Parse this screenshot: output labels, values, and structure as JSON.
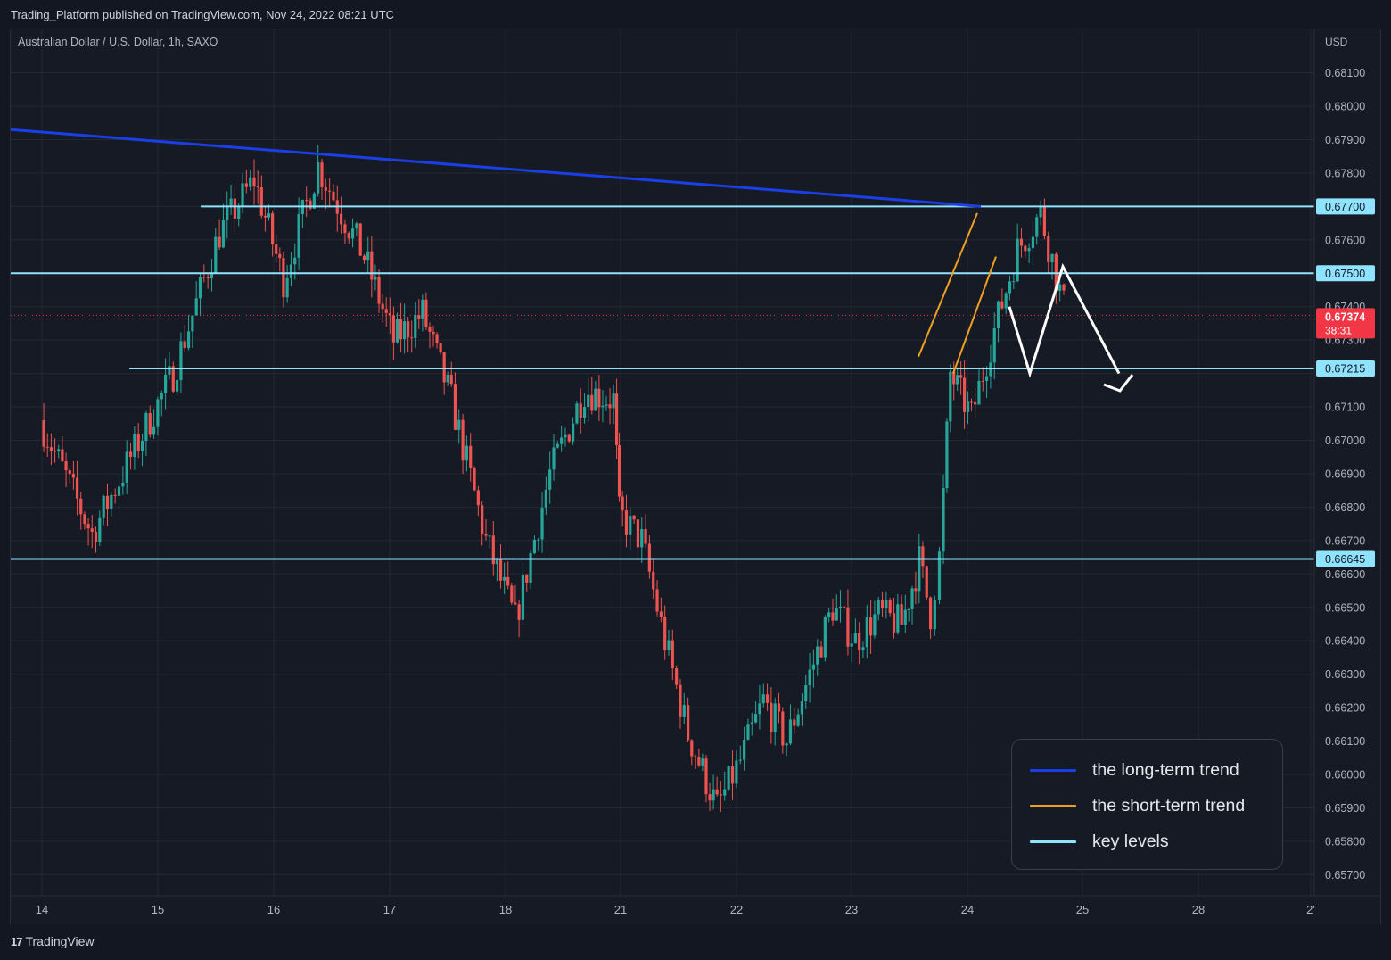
{
  "header": {
    "published_text": "Trading_Platform published on TradingView.com, Nov 24, 2022 08:21 UTC",
    "symbol_text": "Australian Dollar / U.S. Dollar, 1h, SAXO"
  },
  "footer": {
    "brand_mark": "17",
    "brand_name": "TradingView"
  },
  "legend": {
    "items": [
      {
        "label": "the long-term trend",
        "color": "#1b3fe6"
      },
      {
        "label": "the short-term trend",
        "color": "#f0a020"
      },
      {
        "label": "key levels",
        "color": "#8fe3ff"
      }
    ]
  },
  "colors": {
    "background": "#161a25",
    "grid": "#242834",
    "up_candle": "#26a69a",
    "down_candle": "#ef5350",
    "long_trend": "#1b3fe6",
    "short_trend": "#f0a020",
    "key_level": "#8fe3ff",
    "projection": "#ffffff",
    "price_badge": "#f23645"
  },
  "chart_data": {
    "type": "candlestick",
    "title": "Australian Dollar / U.S. Dollar, 1h, SAXO",
    "currency_label": "USD",
    "y_ticks": [
      "0.68100",
      "0.68000",
      "0.67900",
      "0.67800",
      "0.67700",
      "0.67600",
      "0.67500",
      "0.67400",
      "0.67300",
      "0.67200",
      "0.67100",
      "0.67000",
      "0.66900",
      "0.66800",
      "0.66700",
      "0.66600",
      "0.66500",
      "0.66400",
      "0.66300",
      "0.66200",
      "0.66100",
      "0.66000",
      "0.65900",
      "0.65800",
      "0.65700"
    ],
    "ylim": [
      0.6563,
      0.6818
    ],
    "x_labels": [
      "14",
      "15",
      "16",
      "17",
      "18",
      "21",
      "22",
      "23",
      "24",
      "25",
      "28",
      "2'"
    ],
    "session_anchors": [
      {
        "date": "14",
        "close": 0.6706
      },
      {
        "date": "14",
        "close": 0.6672
      },
      {
        "date": "15",
        "close": 0.672
      },
      {
        "date": "15",
        "close": 0.6762
      },
      {
        "date": "15",
        "close": 0.6778
      },
      {
        "date": "16",
        "close": 0.6748
      },
      {
        "date": "16",
        "close": 0.6782
      },
      {
        "date": "16",
        "close": 0.6755
      },
      {
        "date": "17",
        "close": 0.673
      },
      {
        "date": "17",
        "close": 0.6738
      },
      {
        "date": "17",
        "close": 0.6712
      },
      {
        "date": "17",
        "close": 0.667
      },
      {
        "date": "18",
        "close": 0.6646
      },
      {
        "date": "18",
        "close": 0.669
      },
      {
        "date": "18",
        "close": 0.6715
      },
      {
        "date": "18",
        "close": 0.6712
      },
      {
        "date": "21",
        "close": 0.6678
      },
      {
        "date": "21",
        "close": 0.667
      },
      {
        "date": "21",
        "close": 0.664
      },
      {
        "date": "21",
        "close": 0.6612
      },
      {
        "date": "21",
        "close": 0.659
      },
      {
        "date": "22",
        "close": 0.6604
      },
      {
        "date": "22",
        "close": 0.6622
      },
      {
        "date": "22",
        "close": 0.661
      },
      {
        "date": "22",
        "close": 0.665
      },
      {
        "date": "23",
        "close": 0.664
      },
      {
        "date": "23",
        "close": 0.6648
      },
      {
        "date": "23",
        "close": 0.6645
      },
      {
        "date": "23",
        "close": 0.6664
      },
      {
        "date": "23",
        "close": 0.6648
      },
      {
        "date": "23",
        "close": 0.6665
      },
      {
        "date": "23",
        "close": 0.672
      },
      {
        "date": "24",
        "close": 0.6707
      },
      {
        "date": "24",
        "close": 0.6733
      },
      {
        "date": "24",
        "close": 0.6757
      },
      {
        "date": "24",
        "close": 0.6768
      },
      {
        "date": "24",
        "close": 0.674
      }
    ],
    "key_levels": [
      {
        "label": "0.67700",
        "value": 0.677,
        "from_date": "15"
      },
      {
        "label": "0.67500",
        "value": 0.675,
        "from_date": "14"
      },
      {
        "label": "0.67215",
        "value": 0.67215,
        "from_date": "15"
      },
      {
        "label": "0.66645",
        "value": 0.66645,
        "from_date": "14"
      }
    ],
    "long_term_trend": [
      {
        "date": "14",
        "value": 0.6793
      },
      {
        "date": "24",
        "value": 0.677
      }
    ],
    "short_term_channel": [
      [
        {
          "date": "23",
          "value": 0.6725
        },
        {
          "date": "24",
          "value": 0.6768
        }
      ],
      [
        {
          "date": "23",
          "value": 0.672
        },
        {
          "date": "24",
          "value": 0.6755
        }
      ]
    ],
    "projection_path": [
      {
        "date": "24",
        "value": 0.674
      },
      {
        "date": "24",
        "value": 0.672
      },
      {
        "date": "24",
        "value": 0.6752
      },
      {
        "date": "25",
        "value": 0.672
      }
    ],
    "current_price": {
      "label": "0.67374",
      "value": 0.67374,
      "countdown": "38:31"
    },
    "grid": true,
    "legend_position": "bottom-right"
  }
}
